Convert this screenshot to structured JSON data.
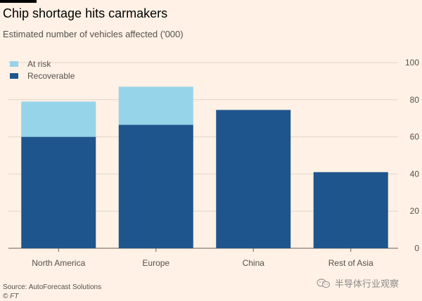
{
  "header": {
    "title": "Chip shortage hits carmakers",
    "subtitle": "Estimated number of vehicles affected ('000)"
  },
  "footer": {
    "source": "Source: AutoForecast Solutions",
    "credit": "© FT",
    "watermark": "半导体行业观察"
  },
  "colors": {
    "background": "#fff1e5",
    "recoverable": "#1e558c",
    "at_risk": "#96d4e9",
    "gridline": "#e0d5cb",
    "axis": "#66605c"
  },
  "chart_data": {
    "type": "bar",
    "stacked": true,
    "categories": [
      "North America",
      "Europe",
      "China",
      "Rest of Asia"
    ],
    "series": [
      {
        "name": "Recoverable",
        "color": "#1e558c",
        "values": [
          60,
          66.5,
          74.5,
          41
        ]
      },
      {
        "name": "At risk",
        "color": "#96d4e9",
        "values": [
          19,
          20.5,
          0,
          0
        ]
      }
    ],
    "legend_order": [
      "At risk",
      "Recoverable"
    ],
    "y_ticks": [
      0,
      20,
      40,
      60,
      80,
      100
    ],
    "ylim": [
      0,
      100
    ],
    "y_axis_side": "right",
    "grid": true,
    "legend_position": "top-left"
  }
}
